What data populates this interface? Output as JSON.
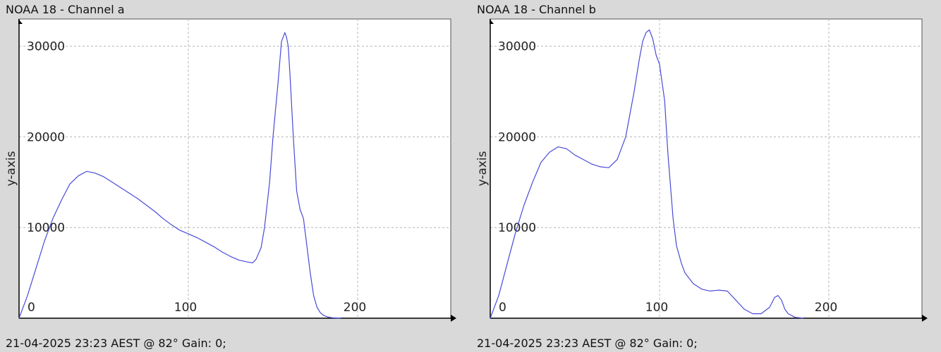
{
  "chart_data": [
    {
      "type": "line",
      "title": "NOAA 18 - Channel a",
      "ylabel": "y-axis",
      "xlabel": "",
      "footer": "21-04-2025 23:23 AEST @ 82° Gain: 0;",
      "xlim": [
        0,
        255
      ],
      "ylim": [
        0,
        33000
      ],
      "xticks": [
        0,
        100,
        200
      ],
      "yticks": [
        10000,
        20000,
        30000
      ],
      "xtick_labels": [
        "0",
        "100",
        "200"
      ],
      "ytick_labels": [
        "10000",
        "20000",
        "30000"
      ],
      "grid": true,
      "line_color": "#4a4ad8",
      "series": [
        {
          "x": [
            0,
            5,
            10,
            15,
            20,
            25,
            30,
            35,
            40,
            45,
            50,
            55,
            60,
            65,
            70,
            75,
            80,
            85,
            90,
            95,
            100,
            105,
            110,
            115,
            120,
            125,
            130,
            135,
            138,
            140,
            143,
            145,
            148,
            150,
            153,
            155,
            157,
            158,
            159,
            160,
            162,
            164,
            166,
            168,
            170,
            172,
            174,
            176,
            178,
            180,
            182,
            185,
            188,
            190
          ],
          "y": [
            0,
            2500,
            5500,
            8500,
            11000,
            13000,
            14800,
            15700,
            16200,
            16000,
            15600,
            15000,
            14400,
            13800,
            13200,
            12500,
            11800,
            11000,
            10300,
            9700,
            9300,
            8900,
            8400,
            7900,
            7300,
            6800,
            6400,
            6200,
            6100,
            6500,
            7800,
            10000,
            15000,
            20000,
            26000,
            30500,
            31500,
            31000,
            30000,
            27000,
            20000,
            14000,
            12000,
            11000,
            8000,
            5000,
            2500,
            1200,
            600,
            300,
            150,
            50,
            10,
            0
          ]
        }
      ]
    },
    {
      "type": "line",
      "title": "NOAA 18 - Channel b",
      "ylabel": "y-axis",
      "xlabel": "",
      "footer": "21-04-2025 23:23 AEST @ 82° Gain: 0;",
      "xlim": [
        0,
        255
      ],
      "ylim": [
        0,
        33000
      ],
      "xticks": [
        0,
        100,
        200
      ],
      "yticks": [
        10000,
        20000,
        30000
      ],
      "xtick_labels": [
        "0",
        "100",
        "200"
      ],
      "ytick_labels": [
        "10000",
        "20000",
        "30000"
      ],
      "grid": true,
      "line_color": "#4a4ad8",
      "series": [
        {
          "x": [
            0,
            5,
            10,
            15,
            20,
            25,
            30,
            35,
            40,
            45,
            50,
            55,
            60,
            65,
            70,
            75,
            80,
            85,
            88,
            90,
            92,
            94,
            96,
            98,
            100,
            103,
            105,
            108,
            110,
            113,
            115,
            120,
            125,
            130,
            135,
            140,
            145,
            150,
            155,
            160,
            165,
            168,
            170,
            172,
            174,
            176,
            180,
            185
          ],
          "y": [
            0,
            2500,
            6000,
            9500,
            12500,
            15000,
            17200,
            18300,
            18900,
            18700,
            18000,
            17500,
            17000,
            16700,
            16600,
            17500,
            20000,
            25000,
            28500,
            30500,
            31500,
            31800,
            30800,
            29000,
            28000,
            24000,
            18000,
            11000,
            8000,
            6000,
            5000,
            3800,
            3200,
            3000,
            3100,
            3000,
            2000,
            1000,
            500,
            500,
            1200,
            2300,
            2500,
            2000,
            1000,
            500,
            100,
            0
          ]
        }
      ]
    }
  ]
}
